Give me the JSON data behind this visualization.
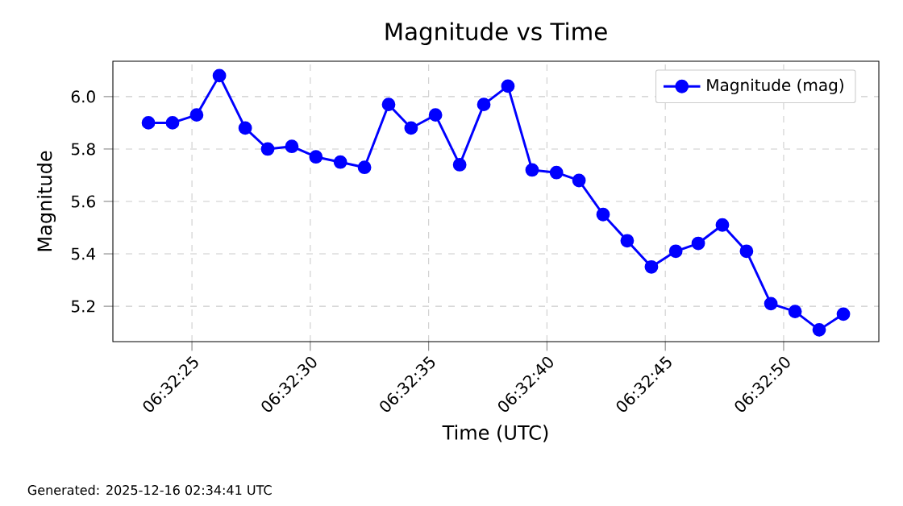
{
  "chart_data": {
    "type": "line",
    "title": "Magnitude vs Time",
    "xlabel": "Time (UTC)",
    "ylabel": "Magnitude",
    "annotations": [
      "Generated: 2025-12-16 02:34:41 UTC"
    ],
    "x": [
      6.539767,
      6.54005,
      6.540333,
      6.5406,
      6.540903,
      6.541167,
      6.54145,
      6.541733,
      6.54202,
      6.542303,
      6.542586,
      6.54285,
      6.543136,
      6.54342,
      6.543703,
      6.543986,
      6.54427,
      6.544556,
      6.54482,
      6.545103,
      6.545386,
      6.54567,
      6.545956,
      6.54622,
      6.546503,
      6.546786,
      6.547072,
      6.547356,
      6.547639,
      6.547923
    ],
    "series": [
      {
        "name": "Magnitude (mag)",
        "color": "#0000ff",
        "values": [
          5.9,
          5.9,
          5.93,
          6.08,
          5.88,
          5.8,
          5.81,
          5.77,
          5.75,
          5.73,
          5.97,
          5.88,
          5.93,
          5.74,
          5.97,
          6.04,
          5.72,
          5.71,
          5.68,
          5.55,
          5.45,
          5.35,
          5.41,
          5.44,
          5.51,
          5.41,
          5.21,
          5.18,
          5.11,
          5.17
        ]
      }
    ],
    "xlim": [
      6.53935,
      6.548339
    ],
    "ylim": [
      5.065,
      6.135
    ],
    "xticks": [
      {
        "value": 6.540278,
        "label": "06:32:25"
      },
      {
        "value": 6.541667,
        "label": "06:32:30"
      },
      {
        "value": 6.543056,
        "label": "06:32:35"
      },
      {
        "value": 6.544444,
        "label": "06:32:40"
      },
      {
        "value": 6.545833,
        "label": "06:32:45"
      },
      {
        "value": 6.547222,
        "label": "06:32:50"
      }
    ],
    "yticks": [
      {
        "value": 5.2,
        "label": "5.2"
      },
      {
        "value": 5.4,
        "label": "5.4"
      },
      {
        "value": 5.6,
        "label": "5.6"
      },
      {
        "value": 5.8,
        "label": "5.8"
      },
      {
        "value": 6.0,
        "label": "6.0"
      }
    ],
    "grid": true,
    "legend": "top right",
    "marker": "circle",
    "line_style": "solid"
  }
}
